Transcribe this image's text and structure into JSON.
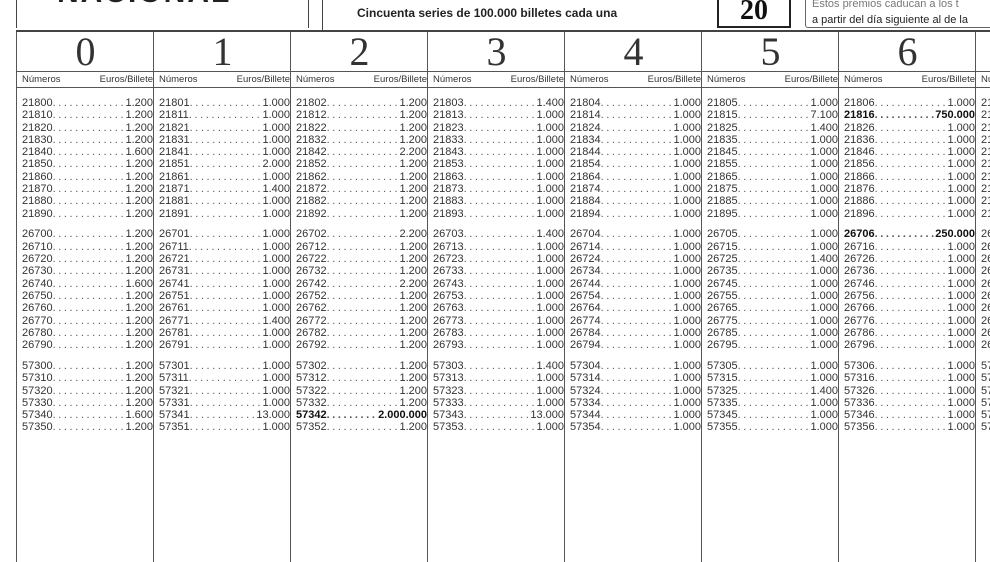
{
  "header": {
    "logo_text": "NACIONAL",
    "series_text": "Cincuenta series de 100.000 billetes cada una",
    "draw_box": "20",
    "note_cut_text": "Estos premios caducan a los t",
    "note_text": "a partir del día siguiente al de la"
  },
  "subheader": {
    "numbers": "Números",
    "euros": "Euros/Billete"
  },
  "columns": [
    {
      "digit": "0",
      "blocks": [
        [
          [
            "21800",
            "1.200"
          ],
          [
            "21810",
            "1.200"
          ],
          [
            "21820",
            "1.200"
          ],
          [
            "21830",
            "1.200"
          ],
          [
            "21840",
            "1.600"
          ],
          [
            "21850",
            "1.200"
          ],
          [
            "21860",
            "1.200"
          ],
          [
            "21870",
            "1.200"
          ],
          [
            "21880",
            "1.200"
          ],
          [
            "21890",
            "1.200"
          ]
        ],
        [
          [
            "26700",
            "1.200"
          ],
          [
            "26710",
            "1.200"
          ],
          [
            "26720",
            "1.200"
          ],
          [
            "26730",
            "1.200"
          ],
          [
            "26740",
            "1.600"
          ],
          [
            "26750",
            "1.200"
          ],
          [
            "26760",
            "1.200"
          ],
          [
            "26770",
            "1.200"
          ],
          [
            "26780",
            "1.200"
          ],
          [
            "26790",
            "1.200"
          ]
        ],
        [
          [
            "57300",
            "1.200"
          ],
          [
            "57310",
            "1.200"
          ],
          [
            "57320",
            "1.200"
          ],
          [
            "57330",
            "1.200"
          ],
          [
            "57340",
            "1.600"
          ],
          [
            "57350",
            "1.200"
          ]
        ]
      ]
    },
    {
      "digit": "1",
      "blocks": [
        [
          [
            "21801",
            "1.000"
          ],
          [
            "21811",
            "1.000"
          ],
          [
            "21821",
            "1.000"
          ],
          [
            "21831",
            "1.000"
          ],
          [
            "21841",
            "1.000"
          ],
          [
            "21851",
            "2.000"
          ],
          [
            "21861",
            "1.000"
          ],
          [
            "21871",
            "1.400"
          ],
          [
            "21881",
            "1.000"
          ],
          [
            "21891",
            "1.000"
          ]
        ],
        [
          [
            "26701",
            "1.000"
          ],
          [
            "26711",
            "1.000"
          ],
          [
            "26721",
            "1.000"
          ],
          [
            "26731",
            "1.000"
          ],
          [
            "26741",
            "1.000"
          ],
          [
            "26751",
            "1.000"
          ],
          [
            "26761",
            "1.000"
          ],
          [
            "26771",
            "1.400"
          ],
          [
            "26781",
            "1.000"
          ],
          [
            "26791",
            "1.000"
          ]
        ],
        [
          [
            "57301",
            "1.000"
          ],
          [
            "57311",
            "1.000"
          ],
          [
            "57321",
            "1.000"
          ],
          [
            "57331",
            "1.000"
          ],
          [
            "57341",
            "13.000"
          ],
          [
            "57351",
            "1.000"
          ]
        ]
      ]
    },
    {
      "digit": "2",
      "blocks": [
        [
          [
            "21802",
            "1.200"
          ],
          [
            "21812",
            "1.200"
          ],
          [
            "21822",
            "1.200"
          ],
          [
            "21832",
            "1.200"
          ],
          [
            "21842",
            "2.200"
          ],
          [
            "21852",
            "1.200"
          ],
          [
            "21862",
            "1.200"
          ],
          [
            "21872",
            "1.200"
          ],
          [
            "21882",
            "1.200"
          ],
          [
            "21892",
            "1.200"
          ]
        ],
        [
          [
            "26702",
            "2.200"
          ],
          [
            "26712",
            "1.200"
          ],
          [
            "26722",
            "1.200"
          ],
          [
            "26732",
            "1.200"
          ],
          [
            "26742",
            "2.200"
          ],
          [
            "26752",
            "1.200"
          ],
          [
            "26762",
            "1.200"
          ],
          [
            "26772",
            "1.200"
          ],
          [
            "26782",
            "1.200"
          ],
          [
            "26792",
            "1.200"
          ]
        ],
        [
          [
            "57302",
            "1.200"
          ],
          [
            "57312",
            "1.200"
          ],
          [
            "57322",
            "1.200"
          ],
          [
            "57332",
            "1.200"
          ],
          [
            "57342",
            "2.000.000",
            true
          ],
          [
            "57352",
            "1.200"
          ]
        ]
      ]
    },
    {
      "digit": "3",
      "blocks": [
        [
          [
            "21803",
            "1.400"
          ],
          [
            "21813",
            "1.000"
          ],
          [
            "21823",
            "1.000"
          ],
          [
            "21833",
            "1.000"
          ],
          [
            "21843",
            "1.000"
          ],
          [
            "21853",
            "1.000"
          ],
          [
            "21863",
            "1.000"
          ],
          [
            "21873",
            "1.000"
          ],
          [
            "21883",
            "1.000"
          ],
          [
            "21893",
            "1.000"
          ]
        ],
        [
          [
            "26703",
            "1.400"
          ],
          [
            "26713",
            "1.000"
          ],
          [
            "26723",
            "1.000"
          ],
          [
            "26733",
            "1.000"
          ],
          [
            "26743",
            "1.000"
          ],
          [
            "26753",
            "1.000"
          ],
          [
            "26763",
            "1.000"
          ],
          [
            "26773",
            "1.000"
          ],
          [
            "26783",
            "1.000"
          ],
          [
            "26793",
            "1.000"
          ]
        ],
        [
          [
            "57303",
            "1.400"
          ],
          [
            "57313",
            "1.000"
          ],
          [
            "57323",
            "1.000"
          ],
          [
            "57333",
            "1.000"
          ],
          [
            "57343",
            "13.000"
          ],
          [
            "57353",
            "1.000"
          ]
        ]
      ]
    },
    {
      "digit": "4",
      "blocks": [
        [
          [
            "21804",
            "1.000"
          ],
          [
            "21814",
            "1.000"
          ],
          [
            "21824",
            "1.000"
          ],
          [
            "21834",
            "1.000"
          ],
          [
            "21844",
            "1.000"
          ],
          [
            "21854",
            "1.000"
          ],
          [
            "21864",
            "1.000"
          ],
          [
            "21874",
            "1.000"
          ],
          [
            "21884",
            "1.000"
          ],
          [
            "21894",
            "1.000"
          ]
        ],
        [
          [
            "26704",
            "1.000"
          ],
          [
            "26714",
            "1.000"
          ],
          [
            "26724",
            "1.000"
          ],
          [
            "26734",
            "1.000"
          ],
          [
            "26744",
            "1.000"
          ],
          [
            "26754",
            "1.000"
          ],
          [
            "26764",
            "1.000"
          ],
          [
            "26774",
            "1.000"
          ],
          [
            "26784",
            "1.000"
          ],
          [
            "26794",
            "1.000"
          ]
        ],
        [
          [
            "57304",
            "1.000"
          ],
          [
            "57314",
            "1.000"
          ],
          [
            "57324",
            "1.000"
          ],
          [
            "57334",
            "1.000"
          ],
          [
            "57344",
            "1.000"
          ],
          [
            "57354",
            "1.000"
          ]
        ]
      ]
    },
    {
      "digit": "5",
      "blocks": [
        [
          [
            "21805",
            "1.000"
          ],
          [
            "21815",
            "7.100"
          ],
          [
            "21825",
            "1.400"
          ],
          [
            "21835",
            "1.000"
          ],
          [
            "21845",
            "1.000"
          ],
          [
            "21855",
            "1.000"
          ],
          [
            "21865",
            "1.000"
          ],
          [
            "21875",
            "1.000"
          ],
          [
            "21885",
            "1.000"
          ],
          [
            "21895",
            "1.000"
          ]
        ],
        [
          [
            "26705",
            "1.000"
          ],
          [
            "26715",
            "1.000"
          ],
          [
            "26725",
            "1.400"
          ],
          [
            "26735",
            "1.000"
          ],
          [
            "26745",
            "1.000"
          ],
          [
            "26755",
            "1.000"
          ],
          [
            "26765",
            "1.000"
          ],
          [
            "26775",
            "1.000"
          ],
          [
            "26785",
            "1.000"
          ],
          [
            "26795",
            "1.000"
          ]
        ],
        [
          [
            "57305",
            "1.000"
          ],
          [
            "57315",
            "1.000"
          ],
          [
            "57325",
            "1.400"
          ],
          [
            "57335",
            "1.000"
          ],
          [
            "57345",
            "1.000"
          ],
          [
            "57355",
            "1.000"
          ]
        ]
      ]
    },
    {
      "digit": "6",
      "blocks": [
        [
          [
            "21806",
            "1.000"
          ],
          [
            "21816",
            "750.000",
            true
          ],
          [
            "21826",
            "1.000"
          ],
          [
            "21836",
            "1.000"
          ],
          [
            "21846",
            "1.000"
          ],
          [
            "21856",
            "1.000"
          ],
          [
            "21866",
            "1.000"
          ],
          [
            "21876",
            "1.000"
          ],
          [
            "21886",
            "1.000"
          ],
          [
            "21896",
            "1.000"
          ]
        ],
        [
          [
            "26706",
            "250.000",
            true
          ],
          [
            "26716",
            "1.000"
          ],
          [
            "26726",
            "1.000"
          ],
          [
            "26736",
            "1.000"
          ],
          [
            "26746",
            "1.000"
          ],
          [
            "26756",
            "1.000"
          ],
          [
            "26766",
            "1.000"
          ],
          [
            "26776",
            "1.000"
          ],
          [
            "26786",
            "1.000"
          ],
          [
            "26796",
            "1.000"
          ]
        ],
        [
          [
            "57306",
            "1.000"
          ],
          [
            "57316",
            "1.000"
          ],
          [
            "57326",
            "1.000"
          ],
          [
            "57336",
            "1.000"
          ],
          [
            "57346",
            "1.000"
          ],
          [
            "57356",
            "1.000"
          ]
        ]
      ]
    }
  ],
  "partial_column": {
    "sub": "Nú",
    "blocks": [
      [
        "21",
        "21",
        "21",
        "21",
        "21",
        "21",
        "21",
        "21",
        "21",
        "21"
      ],
      [
        "26",
        "26",
        "26",
        "26",
        "26",
        "26",
        "26",
        "26",
        "26",
        "26"
      ],
      [
        "57",
        "57",
        "57",
        "57",
        "57",
        "57"
      ]
    ]
  }
}
